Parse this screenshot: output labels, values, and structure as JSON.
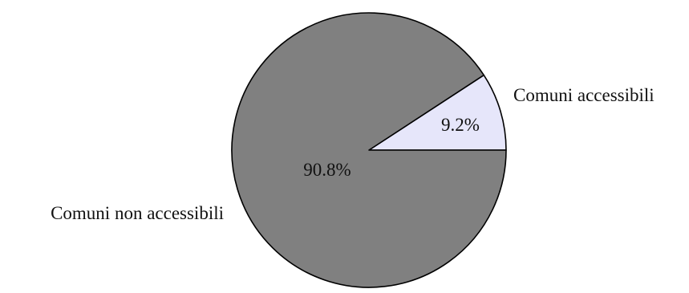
{
  "chart_data": {
    "type": "pie",
    "title": "",
    "slices": [
      {
        "label": "Comuni accessibili",
        "value": 9.2,
        "value_label": "9.2%",
        "color": "#e6e6fa"
      },
      {
        "label": "Comuni non accessibili",
        "value": 90.8,
        "value_label": "90.8%",
        "color": "#808080"
      }
    ],
    "start_angle_deg": 0,
    "direction": "counterclockwise",
    "edge_color": "#000000",
    "legend": "none"
  }
}
